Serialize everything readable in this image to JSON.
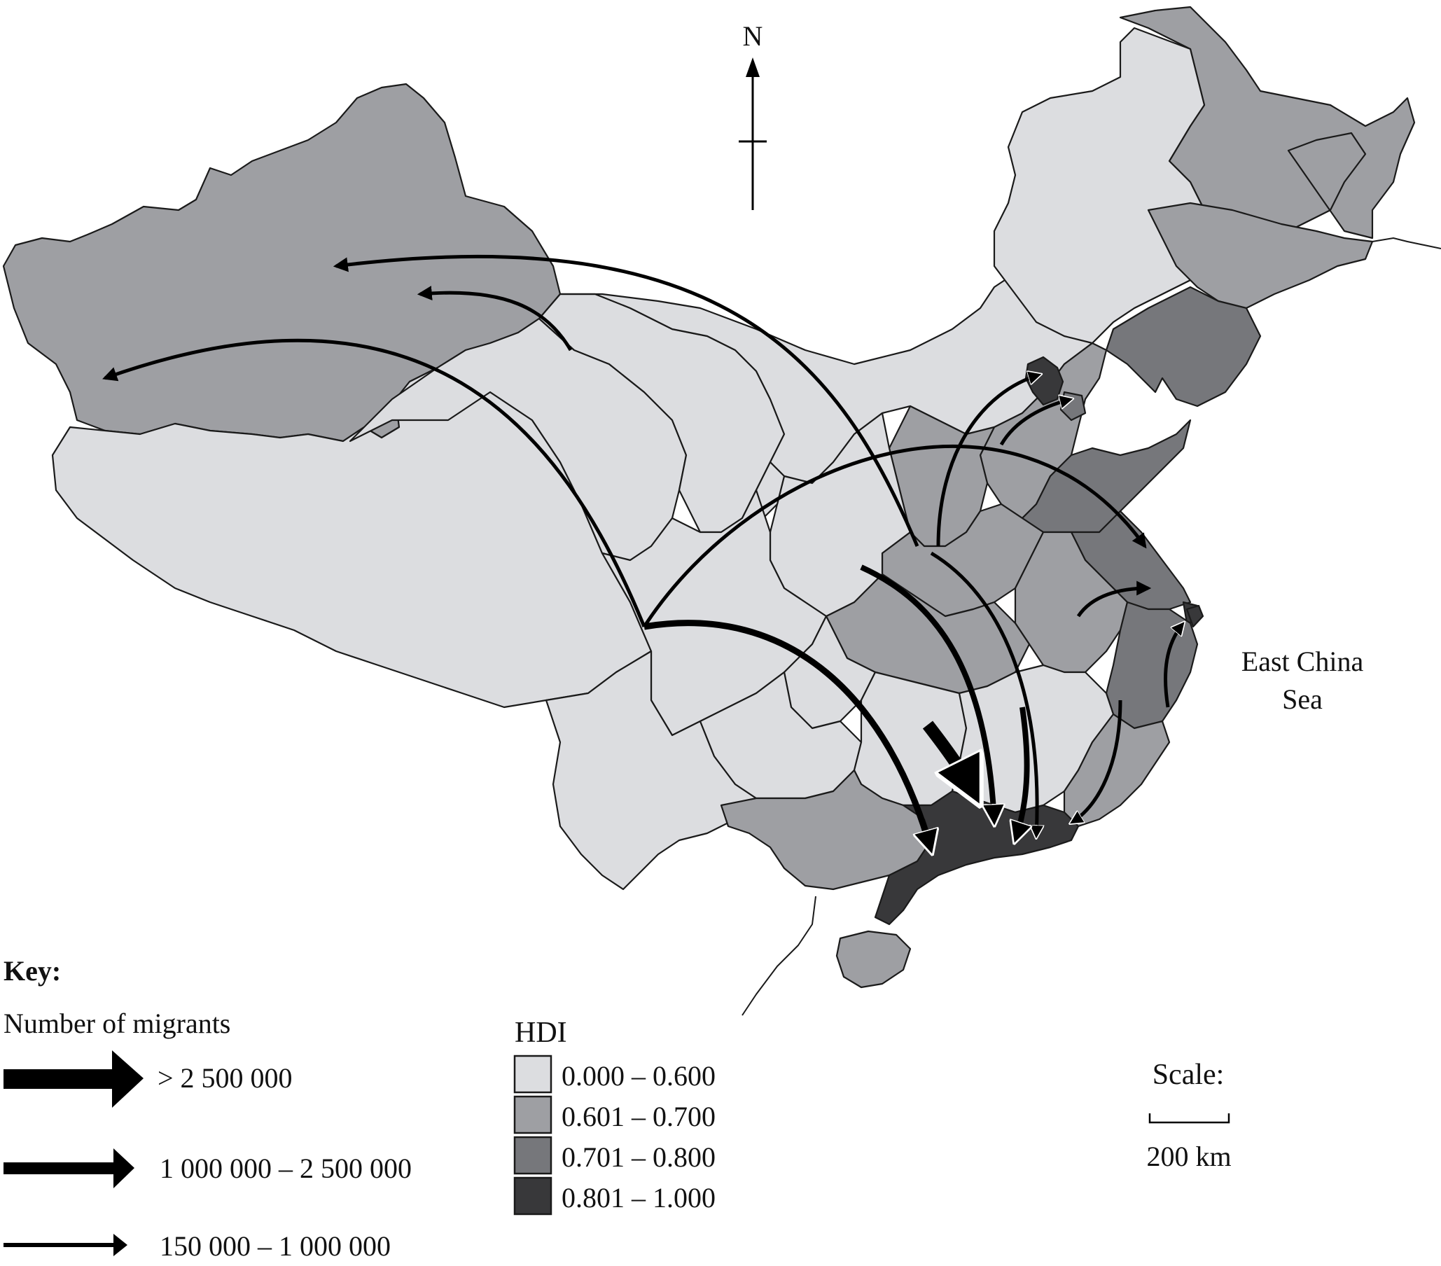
{
  "map": {
    "north_label": "N",
    "sea_label_line1": "East China",
    "sea_label_line2": "Sea"
  },
  "key": {
    "title": "Key:",
    "migrants_heading": "Number of migrants",
    "flow_classes": [
      {
        "label": "> 2 500 000",
        "weight": "high"
      },
      {
        "label": "1 000 000 – 2 500 000",
        "weight": "medium"
      },
      {
        "label": "150 000 – 1 000 000",
        "weight": "low"
      }
    ]
  },
  "hdi": {
    "heading": "HDI",
    "classes": [
      {
        "label": "0.000 – 0.600",
        "color": "#dcdde0"
      },
      {
        "label": "0.601 – 0.700",
        "color": "#9e9fa3"
      },
      {
        "label": "0.701 – 0.800",
        "color": "#76777b"
      },
      {
        "label": "0.801 – 1.000",
        "color": "#38383a"
      }
    ]
  },
  "scale": {
    "heading": "Scale:",
    "distance_label": "200 km"
  }
}
